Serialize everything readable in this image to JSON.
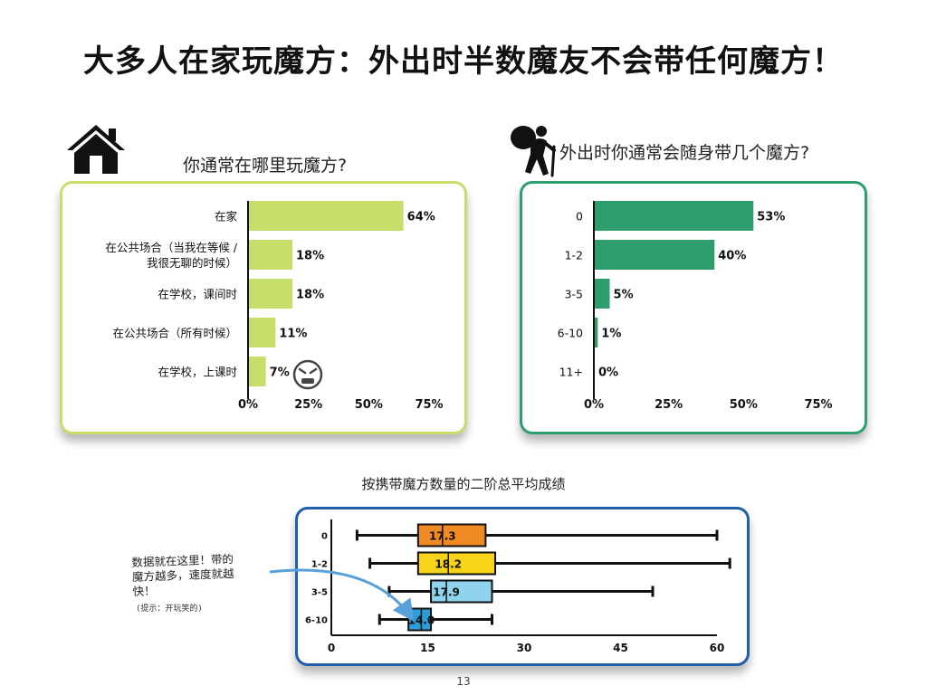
{
  "page": {
    "title": "大多人在家玩魔方：外出时半数魔友不会带任何魔方！",
    "page_number": "13",
    "annotation": "数据就在这里！带的\n魔方越多，速度就越\n快！",
    "annotation_hint": "(提示：开玩笑的)"
  },
  "colors": {
    "left_bar": "#c6de6a",
    "left_border": "#c6de6a",
    "right_bar": "#2e9e6e",
    "right_border": "#2e9e6e",
    "box_border": "#1f5ea8",
    "box_series": [
      "#f08a24",
      "#f7d31a",
      "#8fd3ee",
      "#2b9ed8"
    ]
  },
  "icons": {
    "left": "house-icon",
    "right": "hiker-with-cane-icon",
    "angry": "angry-face-icon"
  },
  "chart_data": [
    {
      "type": "bar",
      "orientation": "horizontal",
      "title": "你通常在哪里玩魔方?",
      "categories": [
        "在家",
        "在公共场合（当我在等候 / 我很无聊的时候）",
        "在学校，课间时",
        "在公共场合（所有时候）",
        "在学校，上课时"
      ],
      "category_lines": [
        [
          "在家"
        ],
        [
          "在公共场合（当我在等候 /",
          "我很无聊的时候）"
        ],
        [
          "在学校，课间时"
        ],
        [
          "在公共场合（所有时候）"
        ],
        [
          "在学校，上课时"
        ]
      ],
      "values": [
        64,
        18,
        18,
        11,
        7
      ],
      "value_labels": [
        "64%",
        "18%",
        "18%",
        "11%",
        "7%"
      ],
      "xlim": [
        0,
        75
      ],
      "xticks": [
        "0%",
        "25%",
        "50%",
        "75%"
      ],
      "xtick_values": [
        0,
        25,
        50,
        75
      ]
    },
    {
      "type": "bar",
      "orientation": "horizontal",
      "title": "外出时你通常会随身带几个魔方?",
      "categories": [
        "0",
        "1-2",
        "3-5",
        "6-10",
        "11+"
      ],
      "values": [
        53,
        40,
        5,
        1,
        0
      ],
      "value_labels": [
        "53%",
        "40%",
        "5%",
        "1%",
        "0%"
      ],
      "xlim": [
        0,
        75
      ],
      "xticks": [
        "0%",
        "25%",
        "50%",
        "75%"
      ],
      "xtick_values": [
        0,
        25,
        50,
        75
      ]
    },
    {
      "type": "boxplot",
      "title": "按携带魔方数量的二阶总平均成绩",
      "categories": [
        "0",
        "1-2",
        "3-5",
        "6-10"
      ],
      "boxes": [
        {
          "min": 4,
          "q1": 13.5,
          "median": 17.3,
          "q3": 24,
          "max": 60,
          "label": "17.3"
        },
        {
          "min": 6,
          "q1": 13.5,
          "median": 18.2,
          "q3": 25.5,
          "max": 62,
          "label": "18.2"
        },
        {
          "min": 9,
          "q1": 15.5,
          "median": 17.9,
          "q3": 25,
          "max": 50,
          "label": "17.9"
        },
        {
          "min": 7.5,
          "q1": 12,
          "median": 14.0,
          "q3": 15.5,
          "max": 25,
          "label": "14.0"
        }
      ],
      "xlim": [
        0,
        60
      ],
      "xticks": [
        "0",
        "15",
        "30",
        "45",
        "60"
      ],
      "xtick_values": [
        0,
        15,
        30,
        45,
        60
      ]
    }
  ]
}
